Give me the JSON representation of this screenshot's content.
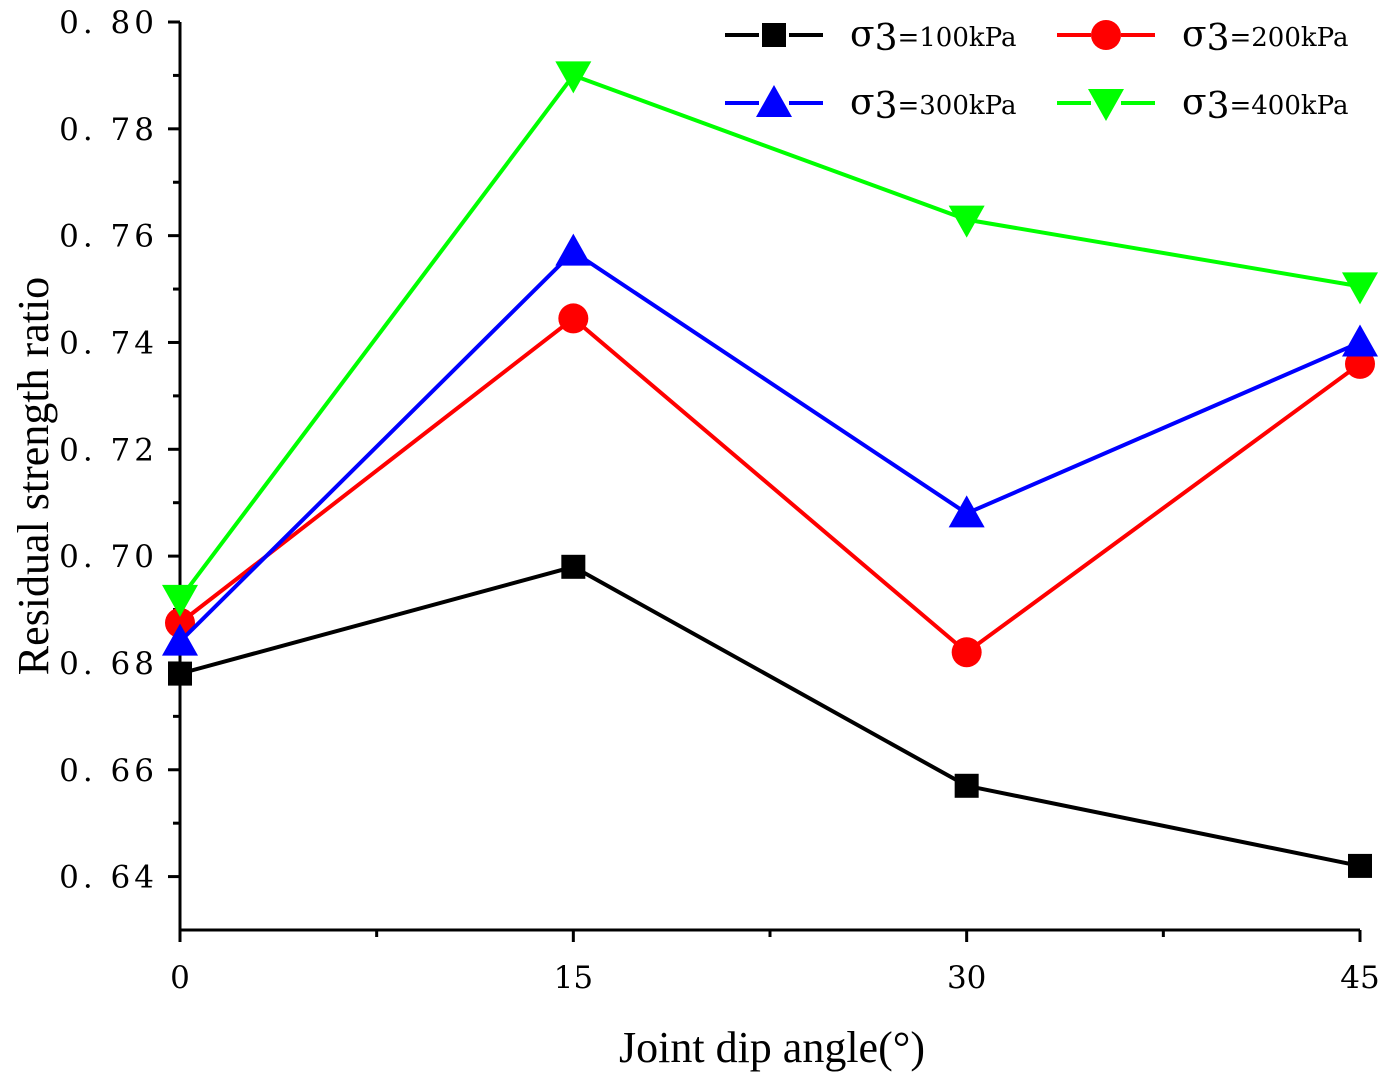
{
  "chart_data": {
    "type": "line",
    "title": "",
    "xlabel": "Joint dip angle(°)",
    "ylabel": "Residual strength ratio",
    "x": [
      0,
      15,
      30,
      45
    ],
    "xticks": [
      "0",
      "15",
      "30",
      "45"
    ],
    "xlim": [
      0,
      45
    ],
    "ylim": [
      0.63,
      0.8
    ],
    "yticks": [
      "0. 64",
      "0. 66",
      "0. 68",
      "0. 70",
      "0. 72",
      "0. 74",
      "0. 76",
      "0. 78",
      "0. 80"
    ],
    "grid": false,
    "legend_position": "top-right",
    "series": [
      {
        "name": "σ3=100kPa",
        "symbol": "σ",
        "subscript": "3",
        "suffix": "=100kPa",
        "color": "#000000",
        "marker": "square",
        "values": [
          0.678,
          0.698,
          0.657,
          0.642
        ]
      },
      {
        "name": "σ3=200kPa",
        "symbol": "σ",
        "subscript": "3",
        "suffix": "=200kPa",
        "color": "#ff0000",
        "marker": "circle",
        "values": [
          0.6875,
          0.7445,
          0.682,
          0.736
        ]
      },
      {
        "name": "σ3=300kPa",
        "symbol": "σ",
        "subscript": "3",
        "suffix": "=300kPa",
        "color": "#0000ff",
        "marker": "triangle-up",
        "values": [
          0.684,
          0.757,
          0.708,
          0.74
        ]
      },
      {
        "name": "σ3=400kPa",
        "symbol": "σ",
        "subscript": "3",
        "suffix": "=400kPa",
        "color": "#00ff00",
        "marker": "triangle-down",
        "values": [
          0.692,
          0.79,
          0.763,
          0.7505
        ]
      }
    ]
  }
}
